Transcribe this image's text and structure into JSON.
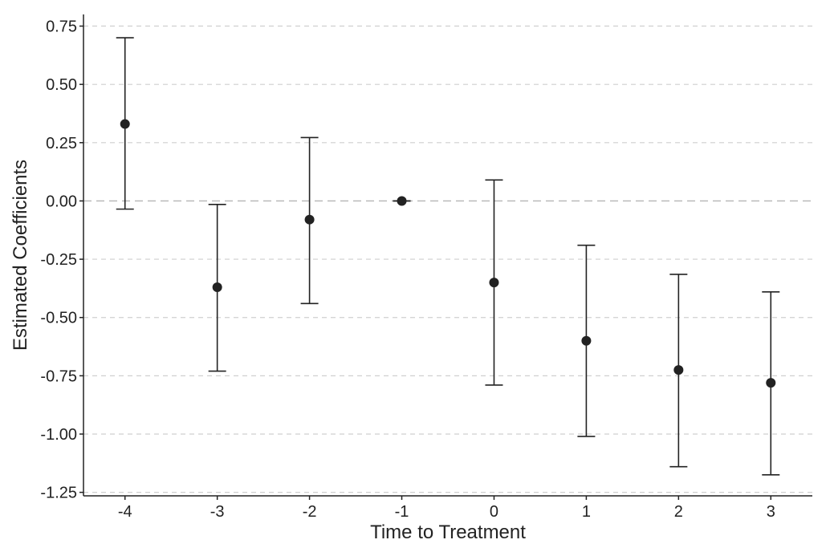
{
  "chart_data": {
    "type": "scatter",
    "title": "",
    "xlabel": "Time to Treatment",
    "ylabel": "Estimated Coefficients",
    "x": [
      -4,
      -3,
      -2,
      -1,
      0,
      1,
      2,
      3
    ],
    "values": [
      0.33,
      -0.37,
      -0.08,
      0.0,
      -0.35,
      -0.6,
      -0.725,
      -0.78
    ],
    "ci_lower": [
      -0.035,
      -0.73,
      -0.44,
      0.0,
      -0.79,
      -1.01,
      -1.14,
      -1.175
    ],
    "ci_upper": [
      0.7,
      -0.015,
      0.272,
      0.0,
      0.09,
      -0.19,
      -0.315,
      -0.39
    ],
    "xlim": [
      -4.45,
      3.45
    ],
    "ylim": [
      -1.265,
      0.8
    ],
    "xticks": [
      "-4",
      "-3",
      "-2",
      "-1",
      "0",
      "1",
      "2",
      "3"
    ],
    "yticks": [
      0.75,
      0.5,
      0.25,
      0.0,
      -0.25,
      -0.5,
      -0.75,
      -1.0,
      -1.25
    ],
    "ytick_labels": [
      "0.75",
      "0.50",
      "0.25",
      "0.00",
      "-0.25",
      "-0.50",
      "-0.75",
      "-1.00",
      "-1.25"
    ],
    "grid": "horizontal-dashed",
    "reference_line_y": 0,
    "legend": "none",
    "colors": {
      "marker": "#222222",
      "grid": "#cfcfcf",
      "reference": "#b5b5b5"
    }
  }
}
